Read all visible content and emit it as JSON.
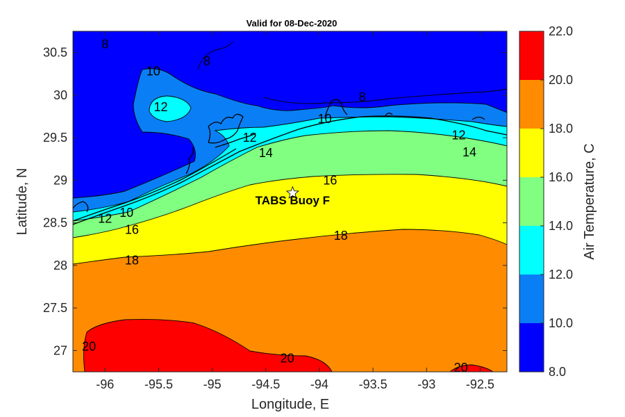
{
  "chart_data": {
    "type": "heatmap",
    "title": "Valid for 08-Dec-2020",
    "xlabel": "Longitude, E",
    "ylabel": "Latitude, N",
    "xlim": [
      -96.3,
      -92.25
    ],
    "ylim": [
      26.75,
      30.75
    ],
    "xticks": [
      -96,
      -95.5,
      -95,
      -94.5,
      -94,
      -93.5,
      -93,
      -92.5
    ],
    "yticks": [
      27,
      27.5,
      28,
      28.5,
      29,
      29.5,
      30,
      30.5
    ],
    "colorbar": {
      "label": "Air Temperature, C",
      "levels": [
        8.0,
        10.0,
        12.0,
        14.0,
        16.0,
        18.0,
        20.0,
        22.0
      ],
      "tick_labels": [
        "8.0",
        "10.0",
        "12.0",
        "14.0",
        "16.0",
        "18.0",
        "20.0",
        "22.0"
      ],
      "colors": [
        "#0000ff",
        "#0a7ff5",
        "#00ffff",
        "#80ff80",
        "#ffff00",
        "#ff8c00",
        "#ff0000"
      ]
    },
    "contour_labels": [
      {
        "text": "8",
        "lon": -96.0,
        "lat": 30.6
      },
      {
        "text": "8",
        "lon": -95.05,
        "lat": 30.4
      },
      {
        "text": "8",
        "lon": -93.6,
        "lat": 29.98
      },
      {
        "text": "10",
        "lon": -95.55,
        "lat": 30.28
      },
      {
        "text": "10",
        "lon": -93.95,
        "lat": 29.72
      },
      {
        "text": "10",
        "lon": -95.8,
        "lat": 28.62
      },
      {
        "text": "12",
        "lon": -95.48,
        "lat": 29.86
      },
      {
        "text": "12",
        "lon": -94.65,
        "lat": 29.5
      },
      {
        "text": "12",
        "lon": -96.0,
        "lat": 28.55
      },
      {
        "text": "12",
        "lon": -92.7,
        "lat": 29.53
      },
      {
        "text": "14",
        "lon": -94.5,
        "lat": 29.32
      },
      {
        "text": "14",
        "lon": -92.6,
        "lat": 29.33
      },
      {
        "text": "16",
        "lon": -93.9,
        "lat": 29.0
      },
      {
        "text": "16",
        "lon": -95.75,
        "lat": 28.42
      },
      {
        "text": "18",
        "lon": -93.8,
        "lat": 28.35
      },
      {
        "text": "18",
        "lon": -95.75,
        "lat": 28.06
      },
      {
        "text": "20",
        "lon": -96.15,
        "lat": 27.05
      },
      {
        "text": "20",
        "lon": -94.3,
        "lat": 26.91
      },
      {
        "text": "20",
        "lon": -92.68,
        "lat": 26.8
      }
    ],
    "annotations": [
      {
        "text": "TABS Buoy F",
        "lon": -94.25,
        "lat": 28.75,
        "marker": "star",
        "marker_lon": -94.25,
        "marker_lat": 28.85
      }
    ]
  }
}
